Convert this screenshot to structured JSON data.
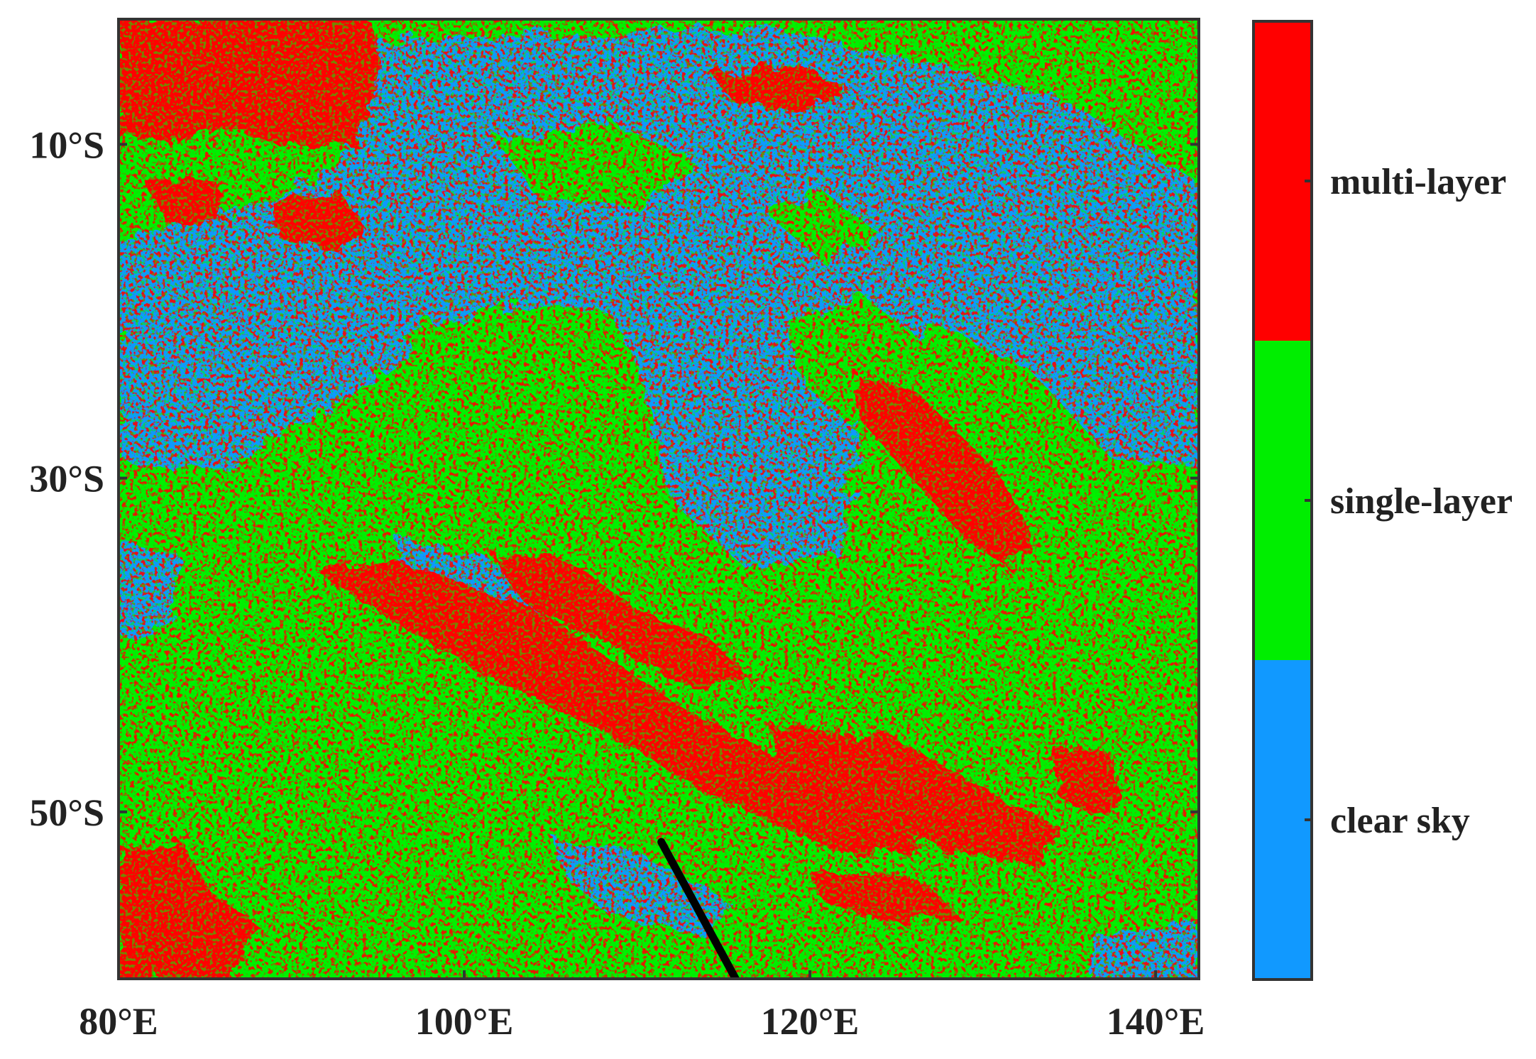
{
  "map": {
    "type": "categorical-raster",
    "lon_range": [
      80,
      142.5
    ],
    "lat_range": [
      -2.5,
      -60
    ],
    "x_ticks": [
      {
        "value": 80,
        "label": "80°E"
      },
      {
        "value": 100,
        "label": "100°E"
      },
      {
        "value": 120,
        "label": "120°E"
      },
      {
        "value": 140,
        "label": "140°E"
      }
    ],
    "y_ticks": [
      {
        "value": -10,
        "label": "10°S"
      },
      {
        "value": -30,
        "label": "30°S"
      },
      {
        "value": -50,
        "label": "50°S"
      }
    ],
    "classes": [
      {
        "id": "multi-layer",
        "label": "multi-layer",
        "color": "#ff0000"
      },
      {
        "id": "single-layer",
        "label": "single-layer",
        "color": "#00ee00"
      },
      {
        "id": "clear-sky",
        "label": "clear sky",
        "color": "#1199ff"
      }
    ],
    "track": {
      "color": "#000000",
      "points": [
        [
          111.4,
          -51.8
        ],
        [
          113.5,
          -55.8
        ],
        [
          115.7,
          -60.0
        ]
      ]
    }
  }
}
